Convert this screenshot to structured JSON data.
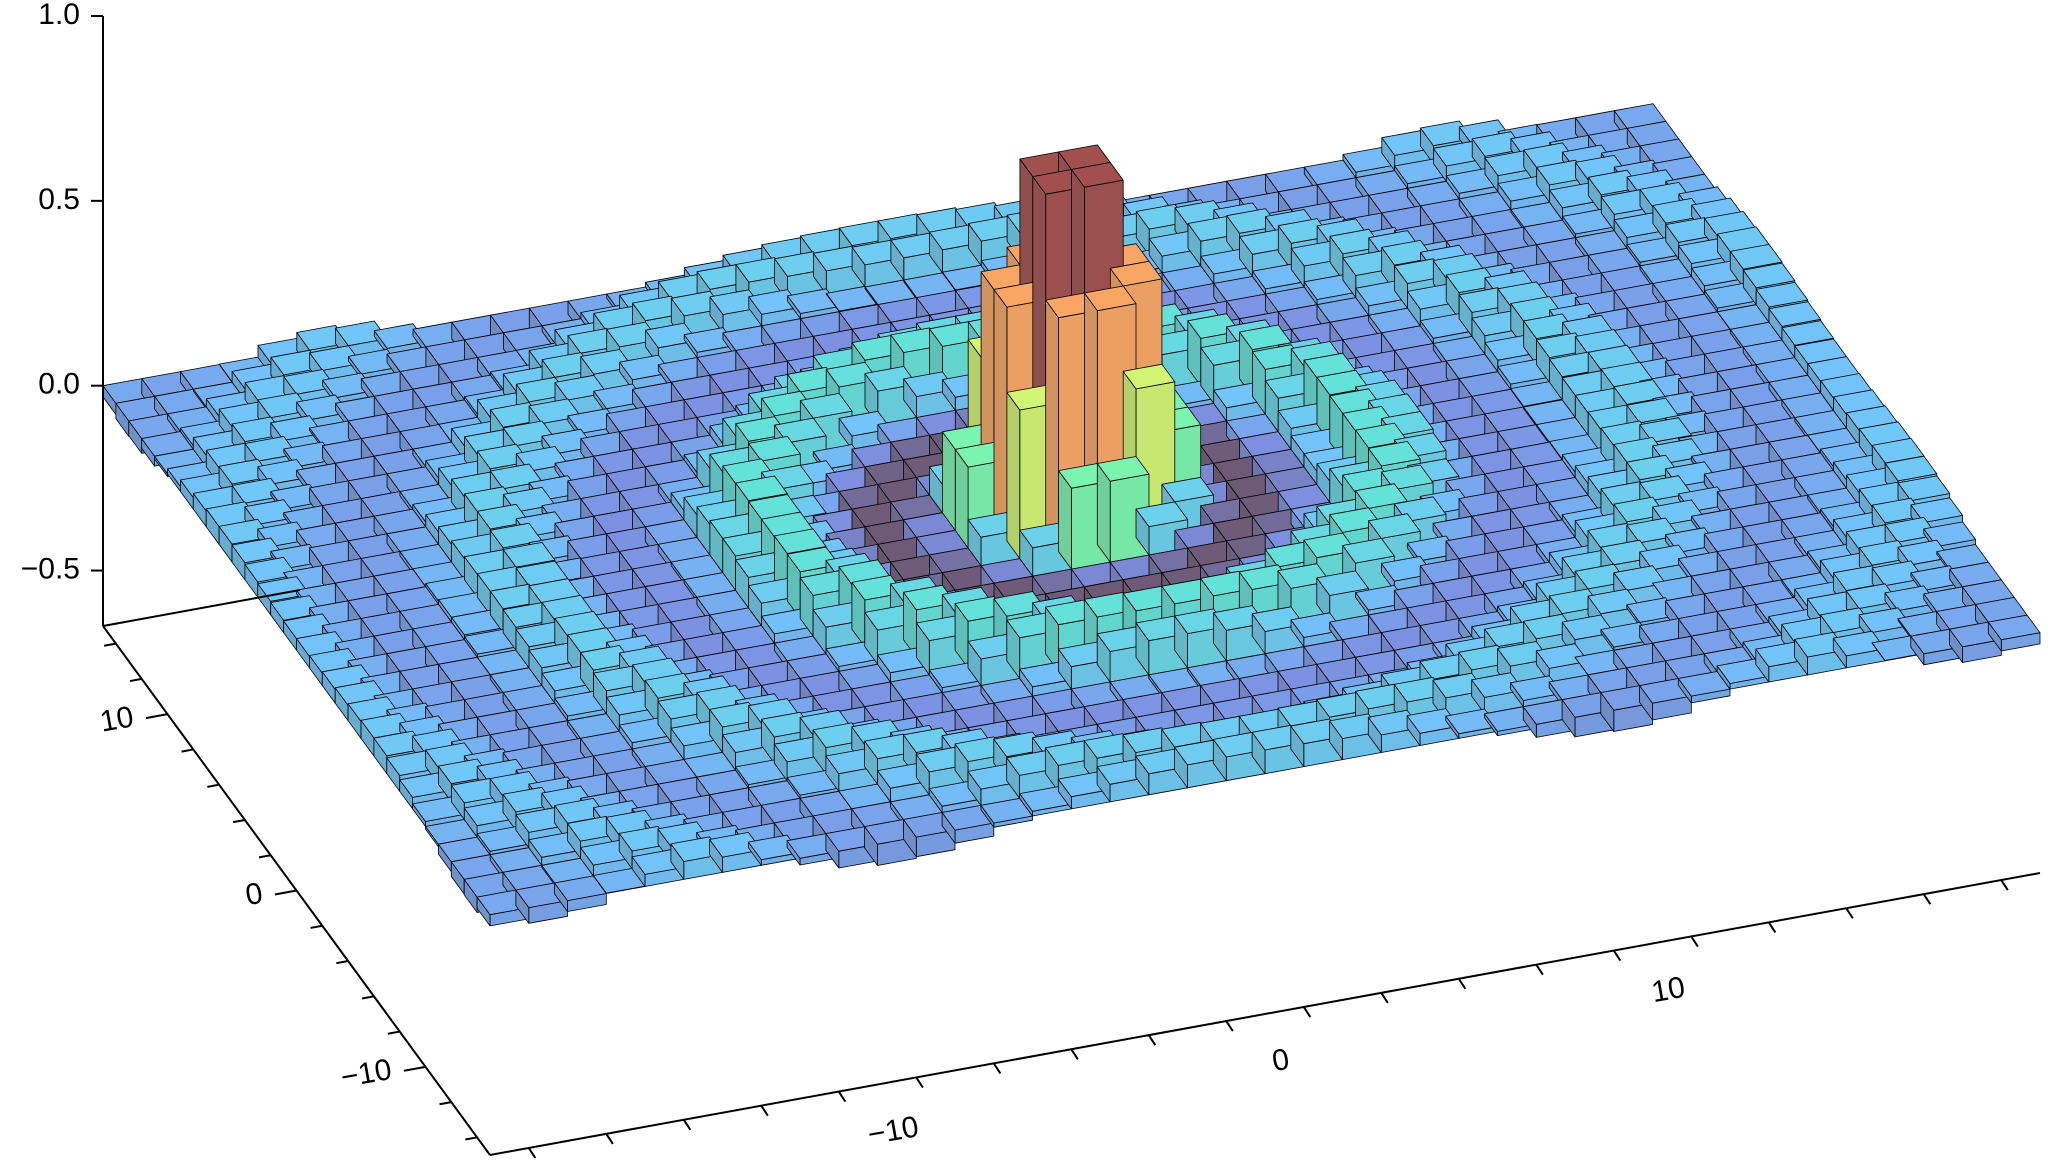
{
  "chart_data": {
    "type": "bar3d",
    "title": "",
    "xlabel": "",
    "ylabel": "",
    "zlabel": "",
    "x": {
      "range": [
        -20,
        20
      ],
      "major_ticks": [
        -10,
        0,
        10
      ],
      "tick_labels": [
        "−10",
        "0",
        "10"
      ],
      "minor_step": 2
    },
    "y": {
      "range": [
        -15,
        15
      ],
      "major_ticks": [
        -10,
        0,
        10
      ],
      "tick_labels": [
        "−10",
        "0",
        "10"
      ],
      "minor_step": 2
    },
    "z": {
      "range": [
        -0.65,
        1.0
      ],
      "major_ticks": [
        -0.5,
        0.0,
        0.5,
        1.0
      ],
      "tick_labels": [
        "−0.5",
        "0.0",
        "0.5",
        "1.0"
      ]
    },
    "grid_size": [
      40,
      30
    ],
    "surface": "sin(r)/r with r = sqrt(x^2 + y^2), evaluated at each grid cell center",
    "colormap": "turbo",
    "colormap_stops": [
      "#30123b",
      "#4662d7",
      "#36aaf9",
      "#1ae4b6",
      "#72fe5e",
      "#c8ef34",
      "#faba39",
      "#f66b19",
      "#ca2a04",
      "#7a0403"
    ],
    "bar_alpha": 0.7,
    "grid": false
  }
}
